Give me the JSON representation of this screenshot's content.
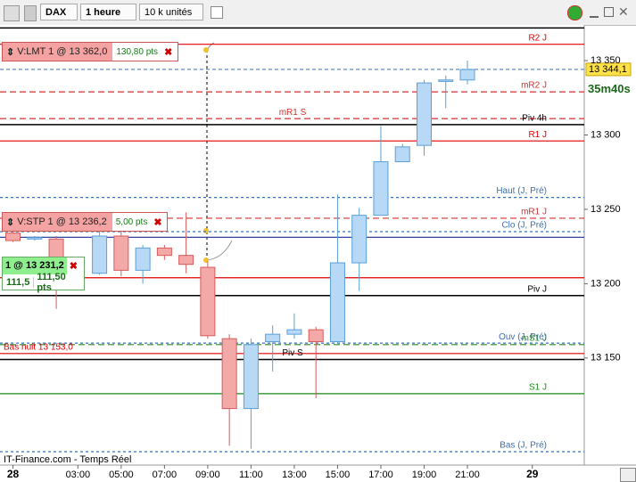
{
  "toolbar": {
    "symbol": "DAX",
    "period": "1 heure",
    "units": "10 k unités"
  },
  "chart_data": {
    "type": "candlestick",
    "x": [
      0,
      1,
      2,
      4,
      5,
      6,
      7,
      8,
      9,
      10,
      11,
      12,
      13,
      14,
      15,
      16,
      17,
      18,
      19,
      20,
      21
    ],
    "open": [
      13234,
      13230,
      13230,
      13207,
      13232,
      13209,
      13224,
      13219,
      13211,
      13163,
      13116,
      13161,
      13166,
      13169,
      13161,
      13214,
      13246,
      13282,
      13293,
      13336,
      13337
    ],
    "high": [
      13236,
      13232,
      13232,
      13240,
      13236,
      13226,
      13226,
      13248,
      13215,
      13166,
      13163,
      13172,
      13180,
      13171,
      13260,
      13251,
      13306,
      13294,
      13337,
      13340,
      13350
    ],
    "low": [
      13228,
      13229,
      13183,
      13206,
      13205,
      13200,
      13216,
      13207,
      13163,
      13091,
      13089,
      13141,
      13163,
      13123,
      13160,
      13195,
      13246,
      13282,
      13286,
      13318,
      13334
    ],
    "close": [
      13229,
      13231,
      13213,
      13232,
      13209,
      13224,
      13219,
      13213,
      13165,
      13116,
      13159,
      13166,
      13169,
      13161,
      13214,
      13246,
      13282,
      13292,
      13335,
      13337,
      13344
    ],
    "up_color": "#b8d9f6",
    "down_color": "#f4a9a9",
    "xlim": [
      -0.6,
      26.4
    ],
    "xticks": [
      {
        "value": 0,
        "label": "28"
      },
      {
        "value": 3,
        "label": "03:00"
      },
      {
        "value": 5,
        "label": "05:00"
      },
      {
        "value": 7,
        "label": "07:00"
      },
      {
        "value": 9,
        "label": "09:00"
      },
      {
        "value": 11,
        "label": "11:00"
      },
      {
        "value": 13,
        "label": "13:00"
      },
      {
        "value": 15,
        "label": "15:00"
      },
      {
        "value": 17,
        "label": "17:00"
      },
      {
        "value": 19,
        "label": "19:00"
      },
      {
        "value": 21,
        "label": "21:00"
      },
      {
        "value": 24,
        "label": "29"
      }
    ],
    "ylim": [
      13078,
      13374
    ],
    "yticks": [
      {
        "value": 13150,
        "label": "13 150"
      },
      {
        "value": 13200,
        "label": "13 200"
      },
      {
        "value": 13250,
        "label": "13 250"
      },
      {
        "value": 13300,
        "label": "13 300"
      },
      {
        "value": 13350,
        "label": "13 350"
      }
    ],
    "last_price": {
      "value": 13344.1,
      "label": "13 344,1"
    },
    "levels": [
      {
        "value": 13372,
        "color": "#000000",
        "style": "solid"
      },
      {
        "name": "R2 J",
        "value": 13361,
        "color": "#e00000",
        "style": "solid",
        "side": "right"
      },
      {
        "name": "mR2 J",
        "value": 13329,
        "color": "#d03030",
        "style": "dashed",
        "side": "right"
      },
      {
        "name": "mR1 S",
        "value": 13311,
        "color": "#d03030",
        "style": "dashed",
        "side": "center"
      },
      {
        "name": "Piv 4h",
        "value": 13307,
        "color": "#000000",
        "style": "solid",
        "side": "right"
      },
      {
        "name": "R1 J",
        "value": 13296,
        "color": "#e00000",
        "style": "solid",
        "side": "right"
      },
      {
        "name": "Haut (J, Pré)",
        "value": 13258,
        "color": "#3b6fb0",
        "style": "dotted",
        "side": "right"
      },
      {
        "name": "mR1 J",
        "value": 13244,
        "color": "#d03030",
        "style": "dashed",
        "side": "right"
      },
      {
        "name": "Clo (J, Pré)",
        "value": 13235,
        "color": "#3b6fb0",
        "style": "dotted",
        "side": "right"
      },
      {
        "value": 13231.2,
        "color": "#1a2a9a",
        "style": "solid"
      },
      {
        "value": 13204,
        "color": "#e00000",
        "style": "solid"
      },
      {
        "name": "Piv J",
        "value": 13192,
        "color": "#000000",
        "style": "solid",
        "side": "right"
      },
      {
        "name": "mS1 J",
        "value": 13159,
        "color": "#2a8a2a",
        "style": "dashed",
        "side": "right"
      },
      {
        "name": "Ouv (J, Pré)",
        "value": 13160,
        "color": "#3b6fb0",
        "style": "dotted",
        "side": "right"
      },
      {
        "name": "Bas nuit 13 153,0",
        "value": 13153,
        "color": "#e00000",
        "style": "solid",
        "side": "left"
      },
      {
        "name": "Piv S",
        "value": 13149,
        "color": "#000000",
        "style": "solid",
        "side": "center"
      },
      {
        "name": "S1 J",
        "value": 13126,
        "color": "#1a8a1a",
        "style": "solid",
        "side": "right"
      },
      {
        "name": "Bas (J, Pré)",
        "value": 13087,
        "color": "#3b6fb0",
        "style": "dotted",
        "side": "right"
      }
    ]
  },
  "countdown": "35m40s",
  "orders": [
    {
      "label": "V:LMT 1 @ 13 362,0",
      "pts": "130,80 pts"
    },
    {
      "label": "V:STP 1 @ 13 236,2",
      "pts": "5,00 pts"
    }
  ],
  "position": {
    "label": "1 @ 13 231,2",
    "value": "111,5",
    "pts": "111,50 pts"
  },
  "footer": "IT-Finance.com - Temps Réel"
}
